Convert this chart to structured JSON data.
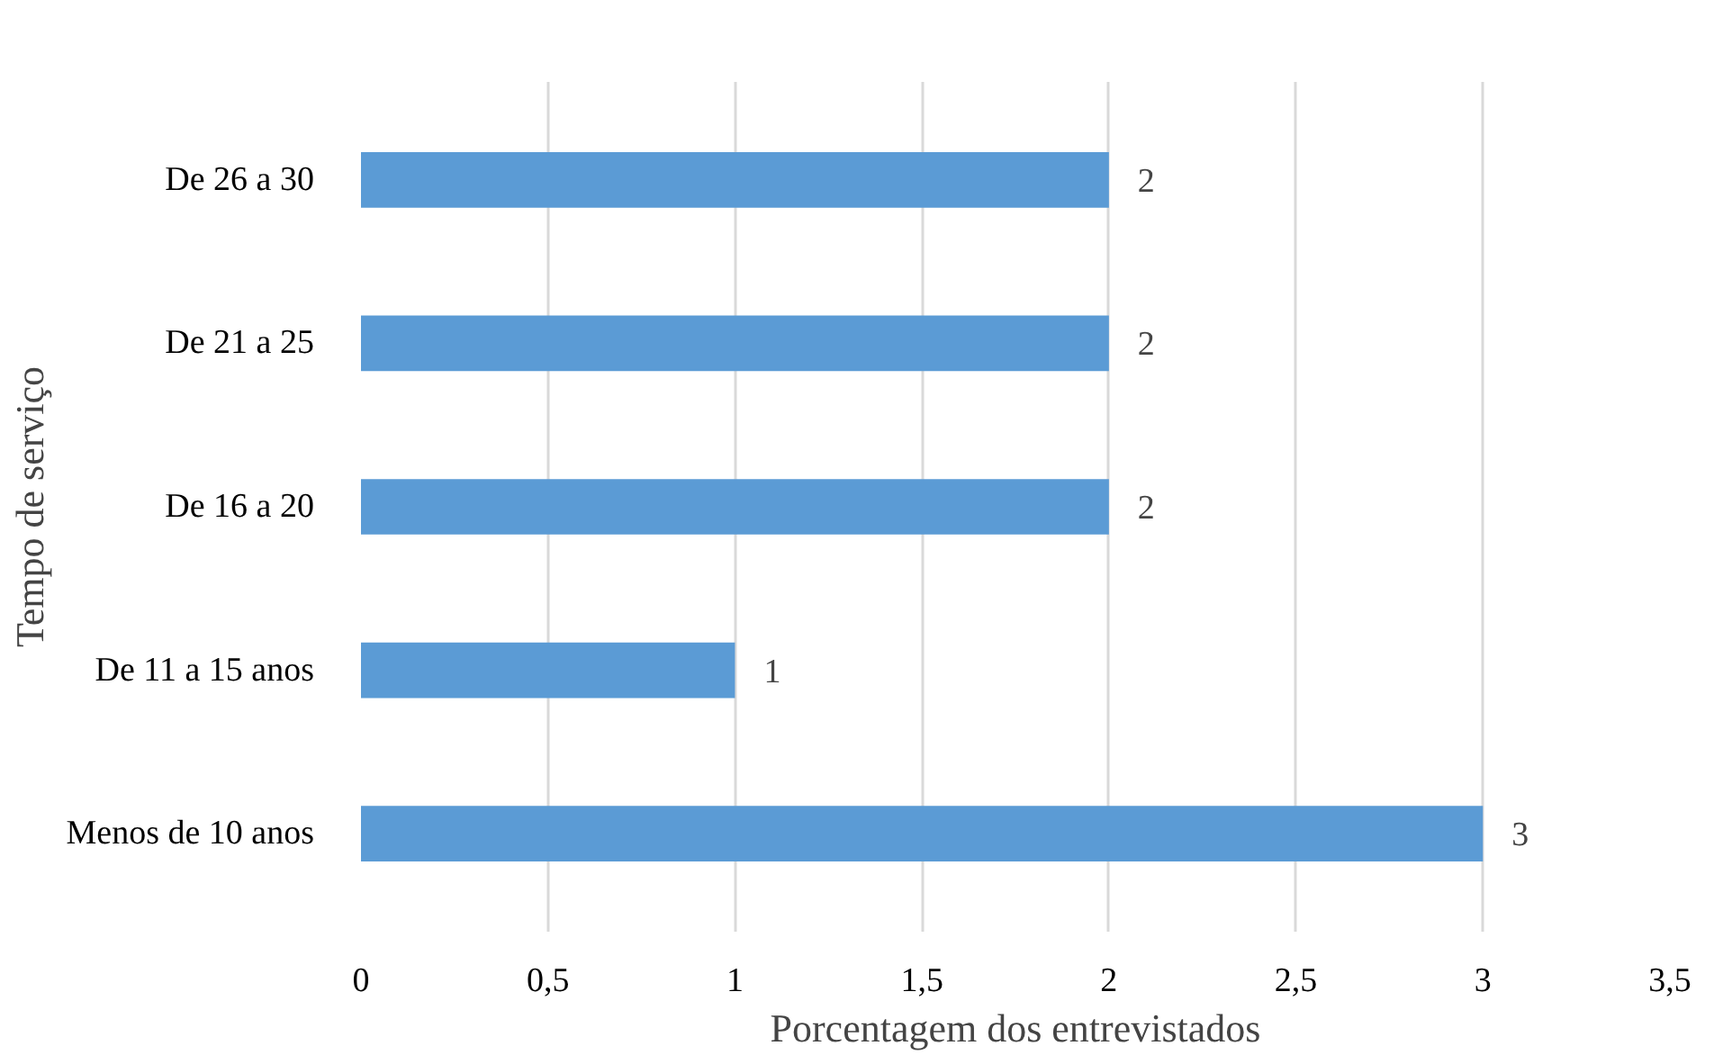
{
  "chart_data": {
    "type": "bar",
    "orientation": "horizontal",
    "xlabel": "Porcentagem dos entrevistados",
    "ylabel": "Tempo de serviço",
    "categories": [
      "De 26 a 30",
      "De 21 a 25",
      "De 16 a 20",
      "De 11 a 15 anos",
      "Menos de 10 anos"
    ],
    "values": [
      2,
      2,
      2,
      1,
      3
    ],
    "color": "#5b9bd5",
    "xlim": [
      0,
      3.5
    ],
    "xticks": [
      0,
      {
        "value": 0.5,
        "label": "0,5"
      },
      1,
      {
        "value": 1.5,
        "label": "1,5"
      },
      2,
      {
        "value": 2.5,
        "label": "2,5"
      },
      3,
      {
        "value": 3.5,
        "label": "3,5"
      }
    ],
    "grid": "x",
    "data_labels": true
  }
}
